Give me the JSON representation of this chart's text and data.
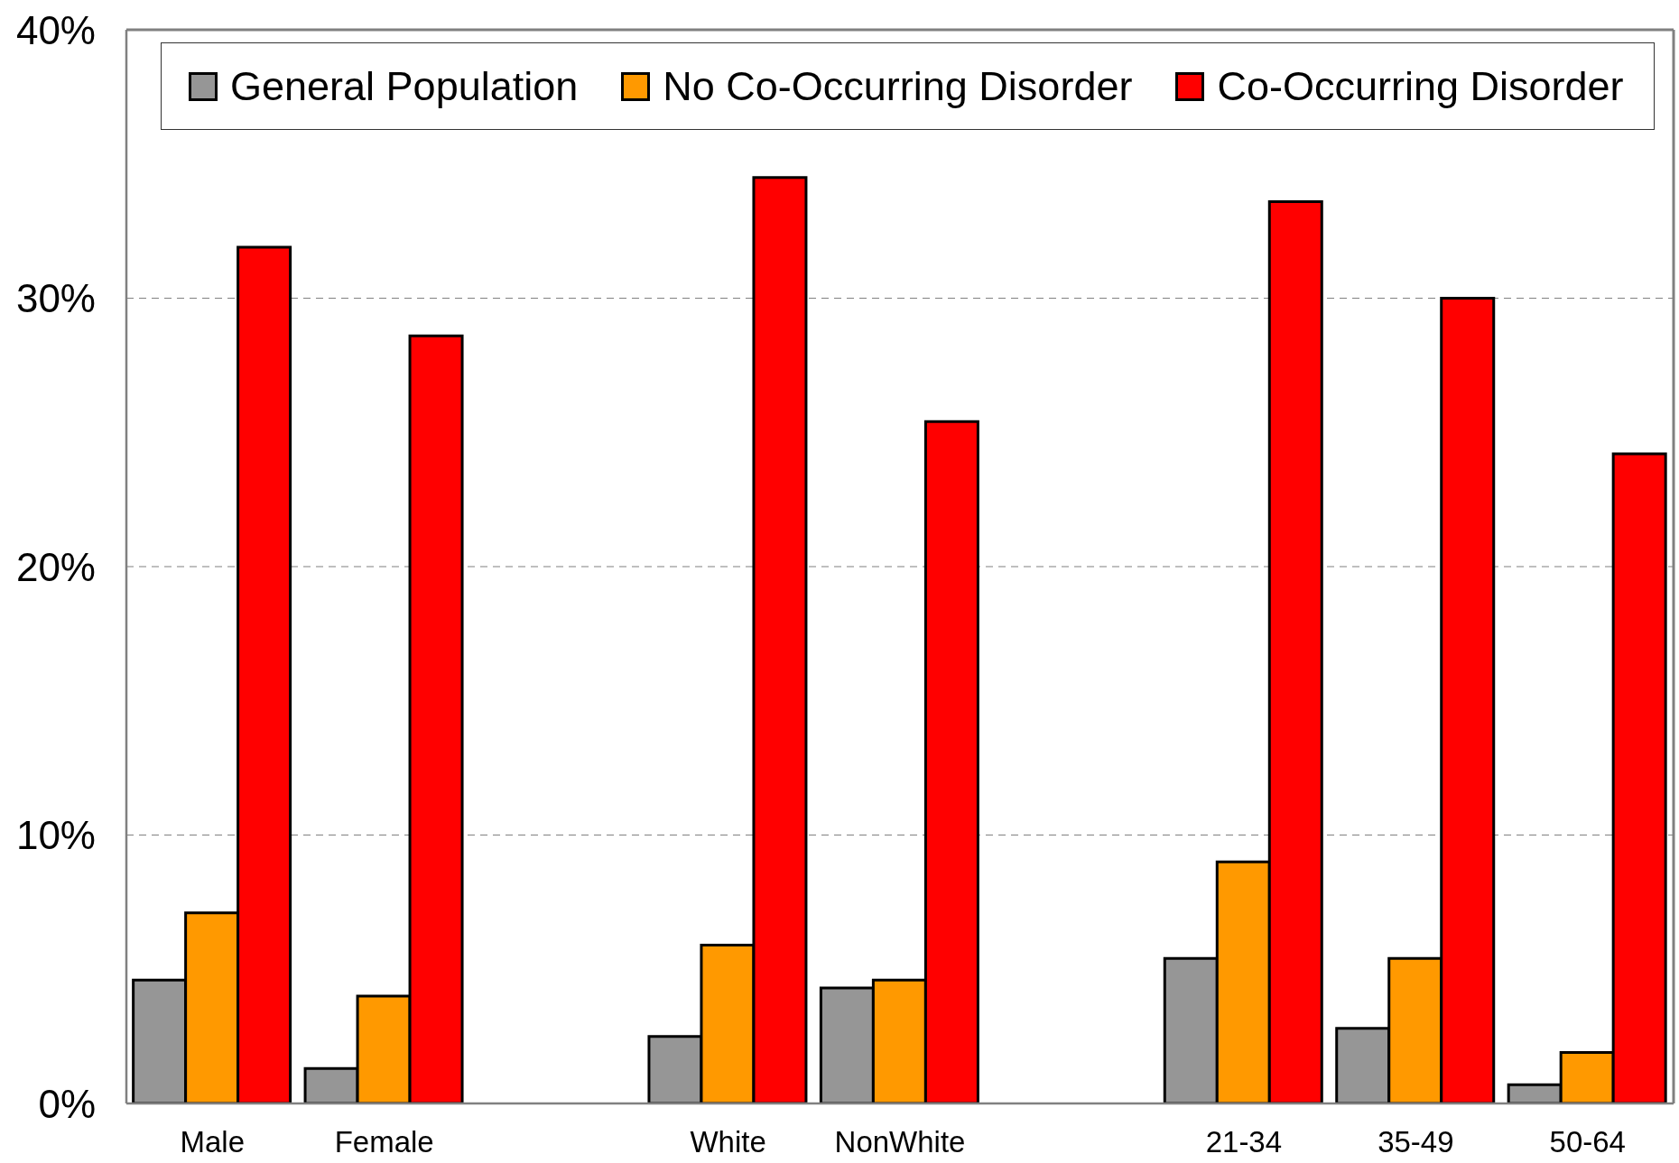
{
  "chart_data": {
    "type": "bar",
    "categories": [
      "Male",
      "Female",
      null,
      "White",
      "NonWhite",
      null,
      "21-34",
      "35-49",
      "50-64"
    ],
    "series": [
      {
        "name": "General Population",
        "color": "#969696",
        "values": [
          4.6,
          1.3,
          null,
          2.5,
          4.3,
          null,
          5.4,
          2.8,
          0.7
        ]
      },
      {
        "name": "No Co-Occurring Disorder",
        "color": "#ff9900",
        "values": [
          7.1,
          4.0,
          null,
          5.9,
          4.6,
          null,
          9.0,
          5.4,
          1.9
        ]
      },
      {
        "name": "Co-Occurring Disorder",
        "color": "#ff0000",
        "values": [
          31.9,
          28.6,
          null,
          34.5,
          25.4,
          null,
          33.6,
          30.0,
          24.2
        ]
      }
    ],
    "ylim": [
      0,
      40
    ],
    "yticks": [
      {
        "value": 0,
        "label": "0%"
      },
      {
        "value": 10,
        "label": "10%"
      },
      {
        "value": 20,
        "label": "20%"
      },
      {
        "value": 30,
        "label": "30%"
      },
      {
        "value": 40,
        "label": "40%"
      }
    ],
    "grid": "y",
    "legend": "top"
  }
}
